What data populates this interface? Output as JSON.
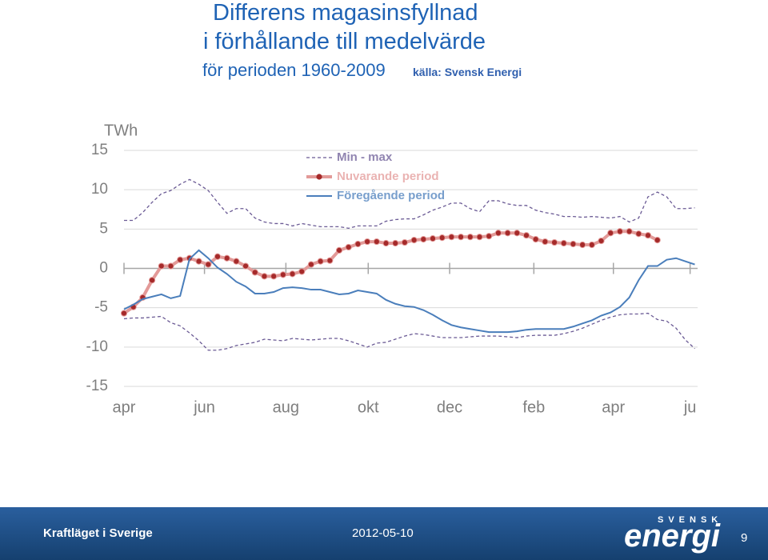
{
  "header": {
    "title_line1": "Differens magasinsfyllnad",
    "title_line2": "i förhållande till medelvärde",
    "subtitle": "för perioden 1960-2009",
    "source": "källa: Svensk Energi"
  },
  "footer": {
    "left": "Kraftläget i Sverige",
    "date": "2012-05-10",
    "logo_top": "SVENSK",
    "logo_main": "energi",
    "page": "9"
  },
  "chart_data": {
    "type": "line",
    "y_label": "TWh",
    "x": [
      0,
      1,
      2,
      3,
      4,
      5,
      6,
      7,
      8,
      9,
      10,
      11,
      12,
      13,
      14,
      15,
      16,
      17,
      18,
      19,
      20,
      21,
      22,
      23,
      24,
      25,
      26,
      27,
      28,
      29,
      30,
      31,
      32,
      33,
      34,
      35,
      36,
      37,
      38,
      39,
      40,
      41,
      42,
      43,
      44,
      45,
      46,
      47,
      48,
      49,
      50,
      51,
      52,
      53,
      54,
      55,
      56,
      57,
      58,
      59,
      60,
      61
    ],
    "xlim": [
      0,
      61.3
    ],
    "xticks": [
      {
        "value": 0,
        "label": "apr"
      },
      {
        "value": 8.6,
        "label": "jun"
      },
      {
        "value": 17.3,
        "label": "aug"
      },
      {
        "value": 26.1,
        "label": "okt"
      },
      {
        "value": 34.8,
        "label": "dec"
      },
      {
        "value": 43.8,
        "label": "feb"
      },
      {
        "value": 52.3,
        "label": "apr"
      },
      {
        "value": 60.5,
        "label": "ju"
      }
    ],
    "ylim": [
      -15,
      15
    ],
    "yticks": [
      15,
      10,
      5,
      0,
      -5,
      -10,
      -15
    ],
    "grid": true,
    "series": [
      {
        "name": "Min - max",
        "color": "#6b5b95",
        "dashed": true,
        "values": [
          6.1,
          6.1,
          7.1,
          8.4,
          9.5,
          9.9,
          10.7,
          11.3,
          10.7,
          9.9,
          8.4,
          7.0,
          7.6,
          7.6,
          6.4,
          5.9,
          5.7,
          5.7,
          5.4,
          5.7,
          5.5,
          5.3,
          5.3,
          5.3,
          5.1,
          5.4,
          5.4,
          5.4,
          6.0,
          6.2,
          6.3,
          6.3,
          6.8,
          7.4,
          7.8,
          8.3,
          8.3,
          7.6,
          7.2,
          8.6,
          8.6,
          8.2,
          8.0,
          8.0,
          7.4,
          7.1,
          6.9,
          6.6,
          6.6,
          6.5,
          6.6,
          6.5,
          6.4,
          6.6,
          5.9,
          6.4,
          9.1,
          9.7,
          9.1,
          7.6,
          7.6,
          7.7
        ],
        "lower": [
          -6.4,
          -6.3,
          -6.3,
          -6.2,
          -6.1,
          -6.9,
          -7.3,
          -8.2,
          -9.2,
          -10.4,
          -10.4,
          -10.2,
          -9.8,
          -9.6,
          -9.4,
          -9.0,
          -9.1,
          -9.2,
          -8.9,
          -9.0,
          -9.1,
          -9.0,
          -8.9,
          -8.9,
          -9.2,
          -9.6,
          -10.0,
          -9.5,
          -9.4,
          -9.0,
          -8.6,
          -8.3,
          -8.4,
          -8.6,
          -8.8,
          -8.8,
          -8.8,
          -8.7,
          -8.6,
          -8.6,
          -8.6,
          -8.7,
          -8.8,
          -8.6,
          -8.5,
          -8.5,
          -8.5,
          -8.3,
          -8.0,
          -7.6,
          -7.1,
          -6.6,
          -6.2,
          -5.9,
          -5.8,
          -5.8,
          -5.7,
          -6.5,
          -6.7,
          -7.6,
          -9.1,
          -10.2
        ]
      },
      {
        "name": "Nuvarande period",
        "color": "#e39a98",
        "marker_color": "#a52a2a",
        "markers": true,
        "values": [
          -5.7,
          -4.9,
          -3.7,
          -1.5,
          0.3,
          0.3,
          1.1,
          1.3,
          0.9,
          0.5,
          1.5,
          1.3,
          0.9,
          0.3,
          -0.5,
          -1.0,
          -1.0,
          -0.8,
          -0.7,
          -0.4,
          0.5,
          0.9,
          1.0,
          2.3,
          2.7,
          3.1,
          3.4,
          3.4,
          3.2,
          3.2,
          3.3,
          3.6,
          3.7,
          3.8,
          3.9,
          4.0,
          4.0,
          4.0,
          4.0,
          4.1,
          4.5,
          4.5,
          4.5,
          4.2,
          3.7,
          3.4,
          3.3,
          3.2,
          3.1,
          3.0,
          3.0,
          3.5,
          4.5,
          4.7,
          4.7,
          4.4,
          4.2,
          3.6,
          null,
          null,
          null,
          null
        ]
      },
      {
        "name": "Föregående period",
        "color": "#4a7ebb",
        "values": [
          -5.2,
          -4.6,
          -3.9,
          -3.6,
          -3.3,
          -3.8,
          -3.5,
          1.2,
          2.3,
          1.3,
          0.1,
          -0.7,
          -1.7,
          -2.3,
          -3.2,
          -3.2,
          -3.0,
          -2.5,
          -2.4,
          -2.5,
          -2.7,
          -2.7,
          -3.0,
          -3.3,
          -3.2,
          -2.8,
          -3.0,
          -3.2,
          -4.0,
          -4.5,
          -4.8,
          -4.9,
          -5.3,
          -5.9,
          -6.6,
          -7.2,
          -7.5,
          -7.7,
          -7.9,
          -8.1,
          -8.1,
          -8.1,
          -8.0,
          -7.8,
          -7.7,
          -7.7,
          -7.7,
          -7.7,
          -7.4,
          -7.0,
          -6.6,
          -6.0,
          -5.6,
          -4.9,
          -3.7,
          -1.5,
          0.3,
          0.3,
          1.1,
          1.3,
          0.9,
          0.5
        ]
      }
    ]
  }
}
